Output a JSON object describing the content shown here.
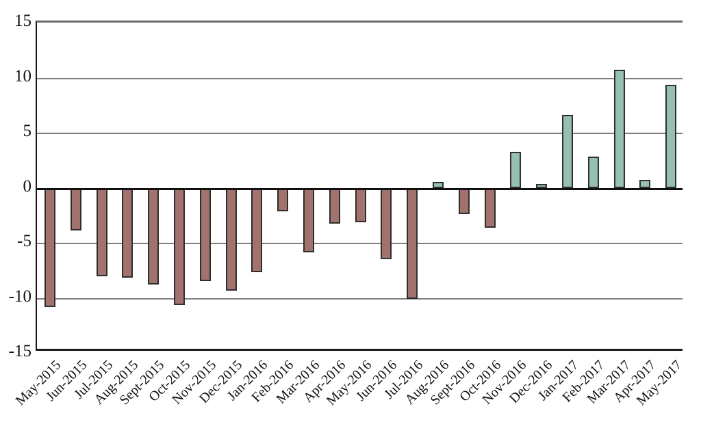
{
  "chart_data": {
    "type": "bar",
    "title": "",
    "xlabel": "",
    "ylabel": "",
    "categories": [
      "May-2015",
      "Jun-2015",
      "Jul-2015",
      "Aug-2015",
      "Sept-2015",
      "Oct-2015",
      "Nov-2015",
      "Dec-2015",
      "Jan-2016",
      "Feb-2016",
      "Mar-2016",
      "Apr-2016",
      "May-2016",
      "Jun-2016",
      "Jul-2016",
      "Aug-2016",
      "Sept-2016",
      "Oct-2016",
      "Nov-2016",
      "Dec-2016",
      "Jan-2017",
      "Feb-2017",
      "Mar-2017",
      "Apr-2017",
      "May-2017"
    ],
    "values": [
      -10.8,
      -3.8,
      -8.0,
      -8.1,
      -8.7,
      -10.6,
      -8.4,
      -9.3,
      -7.6,
      -2.1,
      -5.8,
      -3.2,
      -3.1,
      -6.4,
      -10.0,
      0.6,
      -2.3,
      -3.6,
      3.3,
      0.4,
      6.7,
      2.9,
      10.8,
      0.8,
      9.4
    ],
    "ylim": [
      -15,
      15
    ],
    "yticks": [
      15,
      10,
      5,
      0,
      -5,
      -10,
      -15
    ],
    "grid": true,
    "legend_position": "none",
    "colors": {
      "positive_bar": "#97c0b5",
      "negative_bar": "#a2726e",
      "bar_outline": "#2e2e2e",
      "gridline": "#7f7f7f",
      "zero_line": "#111111",
      "axis_line": "#1a1a1a",
      "top_border": "#6b6b6b",
      "background": "#ffffff",
      "text": "#111111"
    }
  }
}
